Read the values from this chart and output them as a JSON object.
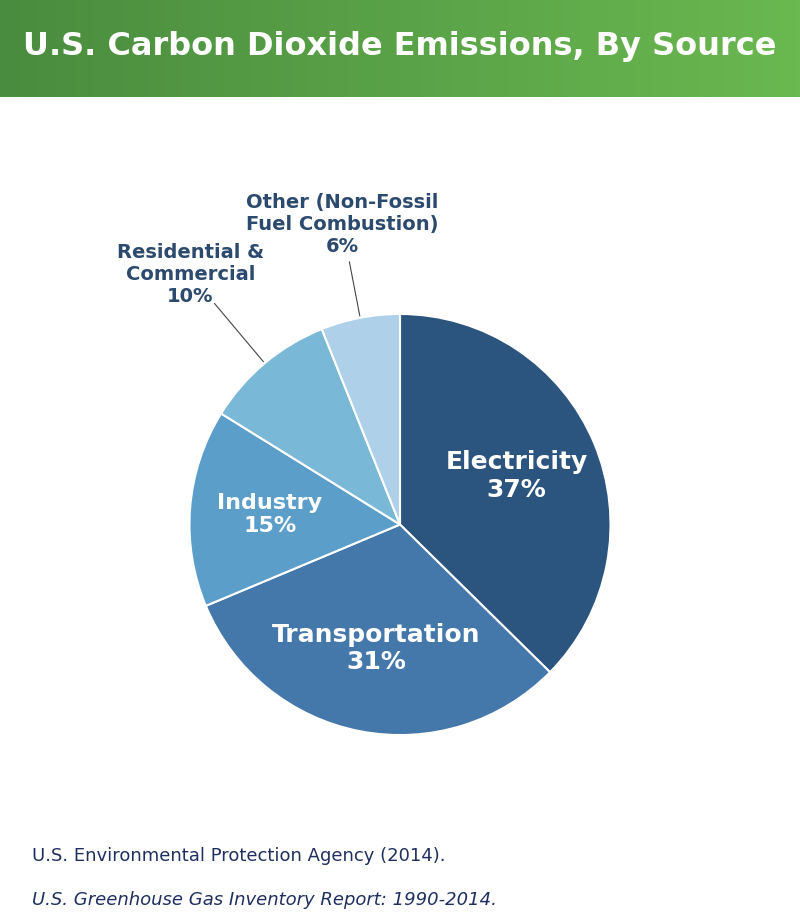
{
  "title": "U.S. Carbon Dioxide Emissions, By Source",
  "title_text_color": "#ffffff",
  "bg_color": "#ffffff",
  "header_color_left": "#4a8c3f",
  "header_color_right": "#6ab850",
  "slices": [
    {
      "label": "Electricity\n37%",
      "value": 37,
      "color": "#2b547e",
      "text_color": "#ffffff",
      "fontsize": 18,
      "outside": false,
      "label_r": 0.6
    },
    {
      "label": "Transportation\n31%",
      "value": 31,
      "color": "#4477aa",
      "text_color": "#ffffff",
      "fontsize": 18,
      "outside": false,
      "label_r": 0.6
    },
    {
      "label": "Industry\n15%",
      "value": 15,
      "color": "#5b9ec9",
      "text_color": "#ffffff",
      "fontsize": 16,
      "outside": false,
      "label_r": 0.62
    },
    {
      "label": "Residential &\nCommercial\n10%",
      "value": 10,
      "color": "#7ab8d8",
      "text_color": "#2c4a6e",
      "fontsize": 14,
      "outside": true,
      "label_r": 1.55
    },
    {
      "label": "Other (Non-Fossil\nFuel Combustion)\n6%",
      "value": 6,
      "color": "#aed0e8",
      "text_color": "#2c4a6e",
      "fontsize": 14,
      "outside": true,
      "label_r": 1.45
    }
  ],
  "start_angle": 90,
  "counterclock": false,
  "footer_line1": "U.S. Environmental Protection Agency (2014).",
  "footer_line2": "U.S. Greenhouse Gas Inventory Report: 1990-2014.",
  "footer_color": "#1f3060",
  "footer_fontsize": 13,
  "wedge_edge_color": "#ffffff",
  "wedge_edge_width": 1.5
}
